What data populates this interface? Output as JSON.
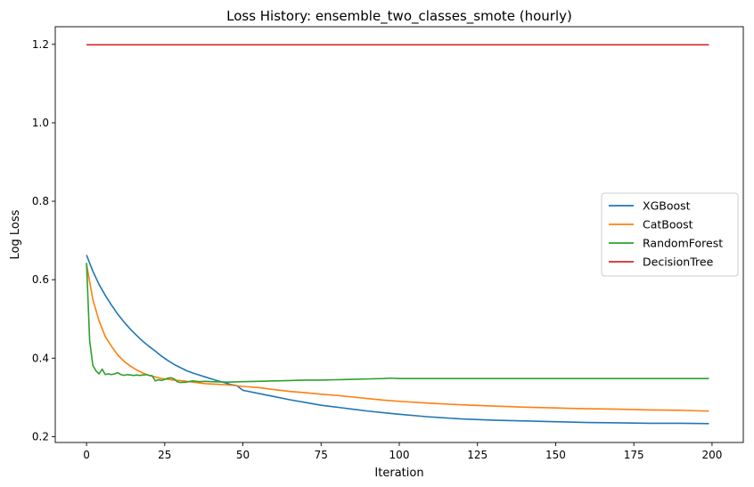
{
  "chart_data": {
    "type": "line",
    "title": "Loss History: ensemble_two_classes_smote (hourly)",
    "xlabel": "Iteration",
    "ylabel": "Log Loss",
    "xlim": [
      -10,
      210
    ],
    "ylim": [
      0.185,
      1.245
    ],
    "xticks": [
      0,
      25,
      50,
      75,
      100,
      125,
      150,
      175,
      200
    ],
    "yticks": [
      0.2,
      0.4,
      0.6,
      0.8,
      1.0,
      1.2
    ],
    "ytick_labels": [
      "0.2",
      "0.4",
      "0.6",
      "0.8",
      "1.0",
      "1.2"
    ],
    "grid": false,
    "legend": "center-right",
    "series": [
      {
        "name": "XGBoost",
        "color": "#1f77b4",
        "x": [
          0,
          2,
          4,
          6,
          8,
          10,
          12,
          14,
          16,
          18,
          20,
          22,
          24,
          26,
          28,
          30,
          32,
          34,
          36,
          38,
          40,
          42,
          44,
          46,
          48,
          50,
          55,
          60,
          65,
          70,
          75,
          80,
          85,
          90,
          95,
          100,
          110,
          120,
          130,
          140,
          150,
          160,
          170,
          180,
          190,
          199
        ],
        "y": [
          0.663,
          0.622,
          0.588,
          0.56,
          0.535,
          0.512,
          0.492,
          0.474,
          0.458,
          0.443,
          0.43,
          0.418,
          0.405,
          0.394,
          0.384,
          0.376,
          0.368,
          0.362,
          0.357,
          0.352,
          0.347,
          0.342,
          0.338,
          0.333,
          0.33,
          0.318,
          0.31,
          0.302,
          0.294,
          0.287,
          0.28,
          0.275,
          0.27,
          0.265,
          0.261,
          0.257,
          0.25,
          0.245,
          0.242,
          0.24,
          0.238,
          0.236,
          0.235,
          0.234,
          0.234,
          0.233
        ]
      },
      {
        "name": "CatBoost",
        "color": "#ff7f0e",
        "x": [
          0,
          2,
          4,
          6,
          8,
          10,
          12,
          14,
          16,
          18,
          20,
          22,
          24,
          26,
          28,
          30,
          32,
          34,
          36,
          38,
          40,
          45,
          50,
          55,
          60,
          65,
          70,
          75,
          80,
          85,
          90,
          95,
          100,
          110,
          120,
          130,
          140,
          150,
          160,
          170,
          180,
          190,
          199
        ],
        "y": [
          0.64,
          0.55,
          0.495,
          0.455,
          0.43,
          0.408,
          0.392,
          0.38,
          0.37,
          0.362,
          0.356,
          0.352,
          0.348,
          0.346,
          0.344,
          0.343,
          0.341,
          0.339,
          0.337,
          0.335,
          0.334,
          0.332,
          0.328,
          0.325,
          0.32,
          0.315,
          0.312,
          0.308,
          0.305,
          0.301,
          0.297,
          0.293,
          0.29,
          0.285,
          0.281,
          0.278,
          0.275,
          0.273,
          0.271,
          0.27,
          0.268,
          0.267,
          0.265
        ]
      },
      {
        "name": "RandomForest",
        "color": "#2ca02c",
        "x": [
          0,
          1,
          2,
          3,
          4,
          5,
          6,
          7,
          8,
          9,
          10,
          11,
          12,
          13,
          14,
          15,
          16,
          17,
          18,
          19,
          20,
          21,
          22,
          23,
          24,
          25,
          26,
          27,
          28,
          29,
          30,
          32,
          34,
          36,
          38,
          40,
          45,
          50,
          55,
          60,
          65,
          70,
          75,
          80,
          85,
          90,
          95,
          97,
          100,
          110,
          120,
          130,
          140,
          150,
          160,
          170,
          180,
          190,
          199
        ],
        "y": [
          0.643,
          0.445,
          0.382,
          0.368,
          0.36,
          0.372,
          0.358,
          0.36,
          0.358,
          0.36,
          0.363,
          0.358,
          0.356,
          0.358,
          0.357,
          0.356,
          0.357,
          0.356,
          0.357,
          0.358,
          0.356,
          0.355,
          0.342,
          0.345,
          0.343,
          0.346,
          0.349,
          0.35,
          0.347,
          0.34,
          0.338,
          0.339,
          0.342,
          0.34,
          0.341,
          0.34,
          0.339,
          0.34,
          0.341,
          0.342,
          0.343,
          0.344,
          0.344,
          0.345,
          0.346,
          0.347,
          0.348,
          0.349,
          0.348,
          0.348,
          0.348,
          0.348,
          0.348,
          0.348,
          0.348,
          0.348,
          0.348,
          0.348,
          0.348
        ]
      },
      {
        "name": "DecisionTree",
        "color": "#d62728",
        "x": [
          0,
          199
        ],
        "y": [
          1.199,
          1.199
        ]
      }
    ]
  }
}
